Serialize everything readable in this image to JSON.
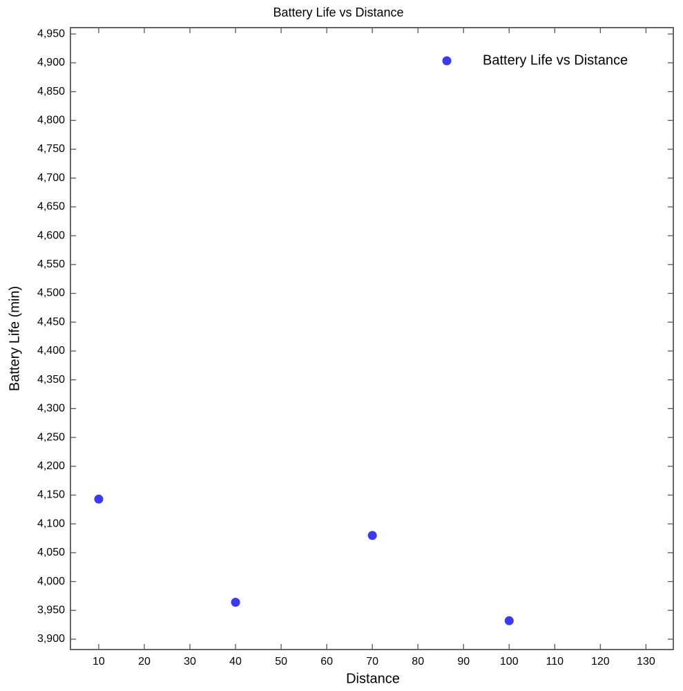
{
  "chart_data": {
    "type": "scatter",
    "title": "Battery Life vs Distance",
    "x_label": "Distance",
    "y_label": "Battery Life (min)",
    "series": [
      {
        "name": "Battery Life vs Distance",
        "color": "#3a3af5",
        "x": [
          10,
          40,
          70,
          100
        ],
        "values": [
          4143,
          3964,
          4080,
          3932
        ]
      }
    ],
    "xlim": [
      3.8,
      136
    ],
    "xticks": [
      10,
      20,
      30,
      40,
      50,
      60,
      70,
      80,
      90,
      100,
      110,
      120,
      130
    ],
    "ylim": [
      3882,
      4961
    ],
    "yticks": [
      {
        "value": 3900,
        "label": "3,900"
      },
      {
        "value": 3950,
        "label": "3,950"
      },
      {
        "value": 4000,
        "label": "4,000"
      },
      {
        "value": 4050,
        "label": "4,050"
      },
      {
        "value": 4100,
        "label": "4,100"
      },
      {
        "value": 4150,
        "label": "4,150"
      },
      {
        "value": 4200,
        "label": "4,200"
      },
      {
        "value": 4250,
        "label": "4,250"
      },
      {
        "value": 4300,
        "label": "4,300"
      },
      {
        "value": 4350,
        "label": "4,350"
      },
      {
        "value": 4400,
        "label": "4,400"
      },
      {
        "value": 4450,
        "label": "4,450"
      },
      {
        "value": 4500,
        "label": "4,500"
      },
      {
        "value": 4550,
        "label": "4,550"
      },
      {
        "value": 4600,
        "label": "4,600"
      },
      {
        "value": 4650,
        "label": "4,650"
      },
      {
        "value": 4700,
        "label": "4,700"
      },
      {
        "value": 4750,
        "label": "4,750"
      },
      {
        "value": 4800,
        "label": "4,800"
      },
      {
        "value": 4850,
        "label": "4,850"
      },
      {
        "value": 4900,
        "label": "4,900"
      },
      {
        "value": 4950,
        "label": "4,950"
      }
    ],
    "grid": false,
    "legend": "upper right"
  }
}
